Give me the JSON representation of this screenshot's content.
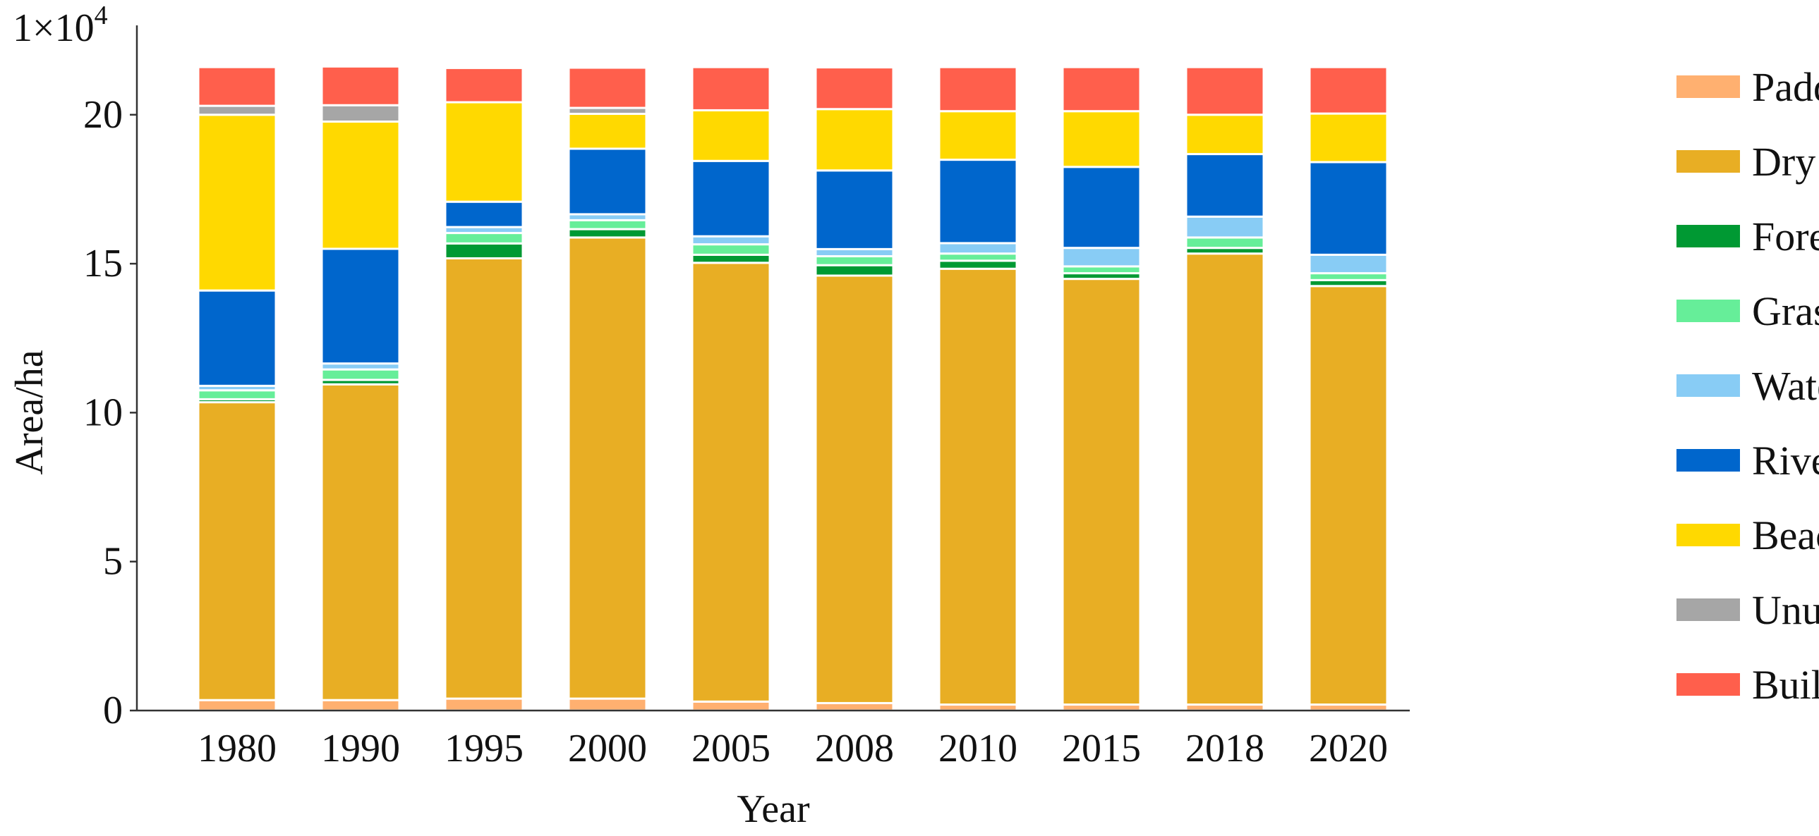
{
  "chart_data": {
    "type": "bar",
    "stacked": true,
    "xlabel": "Year",
    "ylabel": "Area/ha",
    "y_multiplier_label": "1×10",
    "y_multiplier_exp": "4",
    "ylim": [
      0,
      23
    ],
    "yticks": [
      0,
      5,
      10,
      15,
      20
    ],
    "grid": false,
    "legend_position": "right",
    "categories": [
      "1980",
      "1990",
      "1995",
      "2000",
      "2005",
      "2008",
      "2010",
      "2015",
      "2018",
      "2020"
    ],
    "series": [
      {
        "name": "Paddy Field",
        "color": "#FFB070",
        "values": [
          0.35,
          0.35,
          0.4,
          0.4,
          0.3,
          0.25,
          0.2,
          0.2,
          0.2,
          0.2
        ]
      },
      {
        "name": "Dry Land",
        "color": "#E8AE24",
        "values": [
          10.0,
          10.6,
          14.78,
          15.48,
          14.73,
          14.35,
          14.63,
          14.29,
          15.14,
          14.05
        ]
      },
      {
        "name": "Forest",
        "color": "#009933",
        "values": [
          0.1,
          0.15,
          0.5,
          0.28,
          0.27,
          0.35,
          0.27,
          0.19,
          0.19,
          0.2
        ]
      },
      {
        "name": "Grassland",
        "color": "#66EE99",
        "values": [
          0.3,
          0.35,
          0.35,
          0.3,
          0.35,
          0.3,
          0.24,
          0.23,
          0.35,
          0.23
        ]
      },
      {
        "name": "Water Body",
        "color": "#88CCF5",
        "values": [
          0.15,
          0.2,
          0.2,
          0.2,
          0.27,
          0.24,
          0.35,
          0.62,
          0.7,
          0.62
        ]
      },
      {
        "name": "River Canal",
        "color": "#0066CC",
        "values": [
          3.2,
          3.85,
          0.85,
          2.2,
          2.53,
          2.64,
          2.8,
          2.72,
          2.1,
          3.11
        ]
      },
      {
        "name": "Beach",
        "color": "#FFD900",
        "values": [
          5.9,
          4.27,
          3.34,
          1.17,
          1.7,
          2.06,
          1.63,
          1.87,
          1.32,
          1.63
        ]
      },
      {
        "name": "Unused Land",
        "color": "#A6A6A6",
        "values": [
          0.3,
          0.55,
          0,
          0.2,
          0,
          0,
          0,
          0,
          0,
          0
        ]
      },
      {
        "name": "Built-up",
        "color": "#FF5F4C",
        "values": [
          1.3,
          1.3,
          1.15,
          1.35,
          1.45,
          1.4,
          1.48,
          1.48,
          1.6,
          1.56
        ]
      }
    ]
  }
}
